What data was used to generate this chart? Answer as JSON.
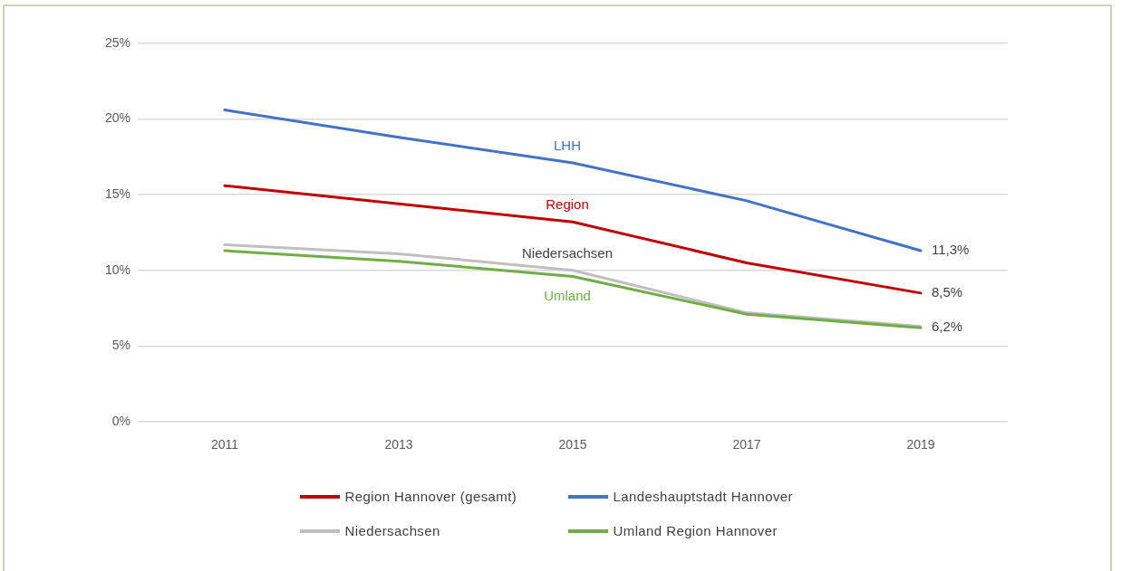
{
  "chart_data": {
    "type": "line",
    "categories": [
      "2011",
      "2013",
      "2015",
      "2017",
      "2019"
    ],
    "series": [
      {
        "name": "Region Hannover (gesamt)",
        "color": "#c00000",
        "values": [
          15.6,
          14.4,
          13.2,
          10.5,
          8.5
        ],
        "value_labels": [
          null,
          null,
          null,
          null,
          "8,5%"
        ]
      },
      {
        "name": "Landeshauptstadt Hannover",
        "color": "#4472c4",
        "values": [
          20.6,
          18.8,
          17.1,
          14.6,
          11.3
        ],
        "value_labels": [
          null,
          null,
          null,
          null,
          "11,3%"
        ]
      },
      {
        "name": "Niedersachsen",
        "color": "#bfbfbf",
        "values": [
          11.7,
          11.1,
          10.0,
          7.2,
          6.3
        ]
      },
      {
        "name": "Umland Region Hannover",
        "color": "#70ad47",
        "values": [
          11.3,
          10.6,
          9.6,
          7.1,
          6.2
        ],
        "value_labels": [
          null,
          null,
          null,
          null,
          "6,2%"
        ]
      }
    ],
    "ylim": [
      0,
      25
    ],
    "yticks": [
      {
        "value": 0,
        "label": "0%"
      },
      {
        "value": 5,
        "label": "5%"
      },
      {
        "value": 10,
        "label": "10%"
      },
      {
        "value": 15,
        "label": "15%"
      },
      {
        "value": 20,
        "label": "20%"
      },
      {
        "value": 25,
        "label": "25%"
      }
    ],
    "annotations": [
      "Region",
      "LHH",
      "Niedersachsen",
      "Umland"
    ],
    "grid": "y",
    "legend": "bottom",
    "marker": "none",
    "line_style": "solid"
  }
}
